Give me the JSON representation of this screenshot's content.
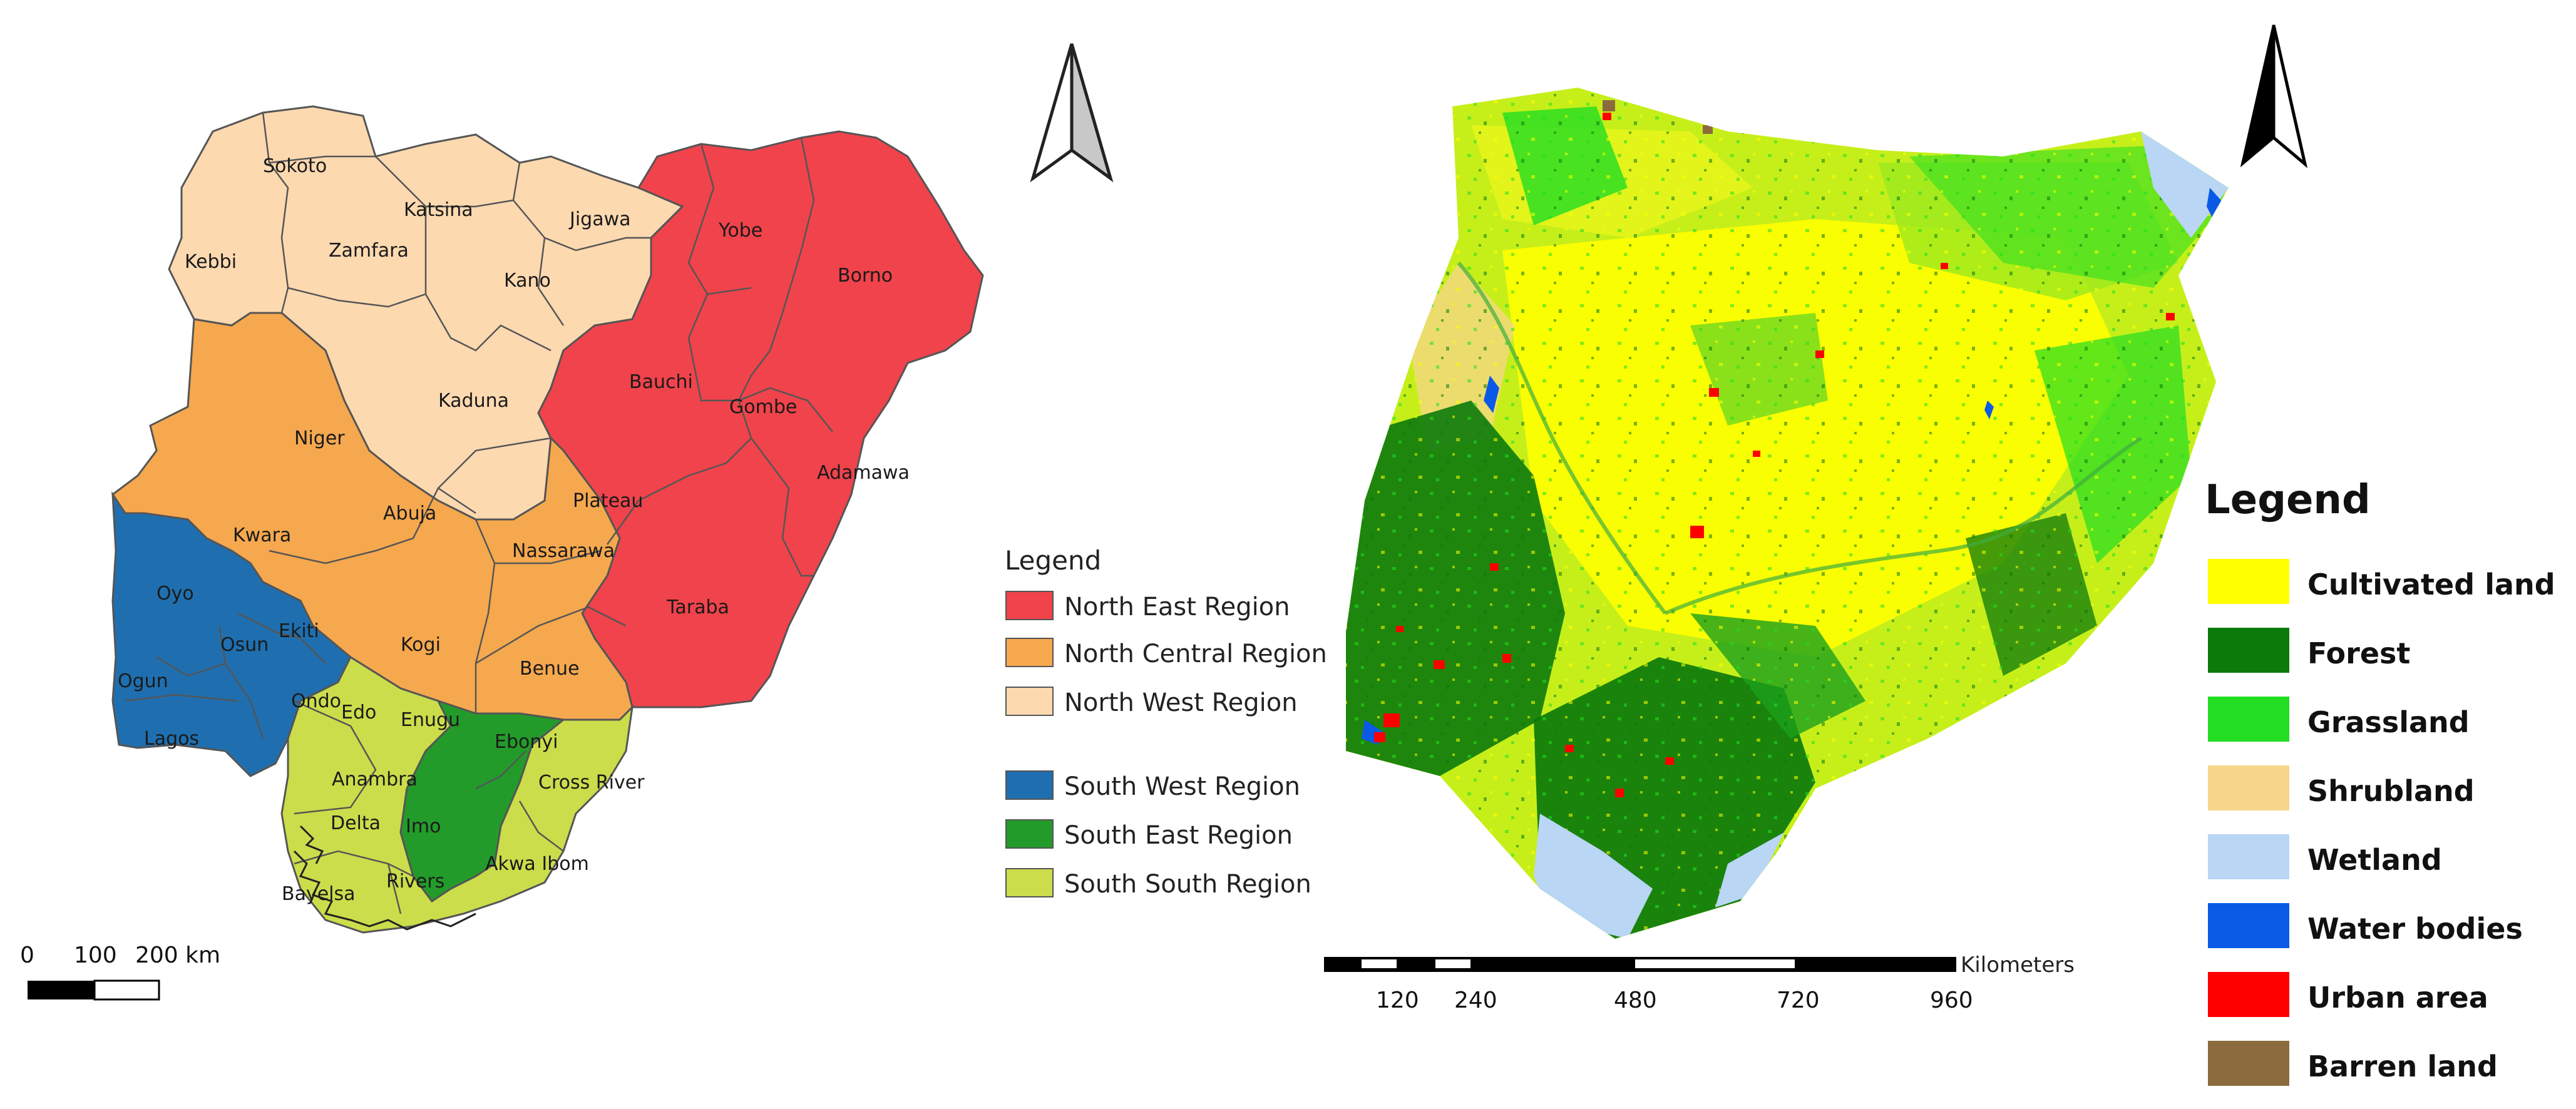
{
  "left_map": {
    "states": [
      {
        "name": "Sokoto",
        "region": "nw"
      },
      {
        "name": "Katsina",
        "region": "nw"
      },
      {
        "name": "Jigawa",
        "region": "nw"
      },
      {
        "name": "Kebbi",
        "region": "nw"
      },
      {
        "name": "Zamfara",
        "region": "nw"
      },
      {
        "name": "Kano",
        "region": "nw"
      },
      {
        "name": "Kaduna",
        "region": "nw"
      },
      {
        "name": "Yobe",
        "region": "ne"
      },
      {
        "name": "Borno",
        "region": "ne"
      },
      {
        "name": "Bauchi",
        "region": "ne"
      },
      {
        "name": "Gombe",
        "region": "ne"
      },
      {
        "name": "Adamawa",
        "region": "ne"
      },
      {
        "name": "Taraba",
        "region": "ne"
      },
      {
        "name": "Niger",
        "region": "nc"
      },
      {
        "name": "Plateau",
        "region": "nc"
      },
      {
        "name": "Abuja",
        "region": "nc"
      },
      {
        "name": "Nassarawa",
        "region": "nc"
      },
      {
        "name": "Kwara",
        "region": "nc"
      },
      {
        "name": "Kogi",
        "region": "nc"
      },
      {
        "name": "Benue",
        "region": "nc"
      },
      {
        "name": "Oyo",
        "region": "sw"
      },
      {
        "name": "Osun",
        "region": "sw"
      },
      {
        "name": "Ekiti",
        "region": "sw"
      },
      {
        "name": "Ogun",
        "region": "sw"
      },
      {
        "name": "Lagos",
        "region": "sw"
      },
      {
        "name": "Ondo",
        "region": "sw"
      },
      {
        "name": "Edo",
        "region": "ss"
      },
      {
        "name": "Enugu",
        "region": "se"
      },
      {
        "name": "Ebonyi",
        "region": "se"
      },
      {
        "name": "Anambra",
        "region": "se"
      },
      {
        "name": "Cross River",
        "region": "ss"
      },
      {
        "name": "Delta",
        "region": "ss"
      },
      {
        "name": "Imo",
        "region": "se"
      },
      {
        "name": "Akwa Ibom",
        "region": "ss"
      },
      {
        "name": "Rivers",
        "region": "ss"
      },
      {
        "name": "Bayelsa",
        "region": "ss"
      }
    ],
    "legend": {
      "title": "Legend",
      "items": [
        {
          "label": "North East Region",
          "color": "#f0434b"
        },
        {
          "label": "North Central Region",
          "color": "#f5a84e"
        },
        {
          "label": "North West Region",
          "color": "#fdd9b0"
        },
        {
          "label": "South West Region",
          "color": "#1f6fb0"
        },
        {
          "label": "South East Region",
          "color": "#239b2a"
        },
        {
          "label": "South South Region",
          "color": "#cbdd4a"
        }
      ]
    },
    "scale": {
      "labels": [
        "0",
        "100",
        "200 km"
      ]
    },
    "north_arrow": "north-arrow-icon"
  },
  "right_map": {
    "legend": {
      "title": "Legend",
      "items": [
        {
          "label": "Cultivated land",
          "color": "#ffff00"
        },
        {
          "label": "Forest",
          "color": "#0b7a0b"
        },
        {
          "label": "Grassland",
          "color": "#22dd22"
        },
        {
          "label": "Shrubland",
          "color": "#f7d68a"
        },
        {
          "label": "Wetland",
          "color": "#b9d6f5"
        },
        {
          "label": "Water bodies",
          "color": "#0a5ae6"
        },
        {
          "label": "Urban area",
          "color": "#ff0000"
        },
        {
          "label": "Barren land",
          "color": "#8b6b3d"
        }
      ]
    },
    "scale": {
      "unit": "Kilometers",
      "ticks": [
        "120",
        "240",
        "480",
        "720",
        "960"
      ]
    },
    "north_arrow": "north-arrow-icon"
  }
}
